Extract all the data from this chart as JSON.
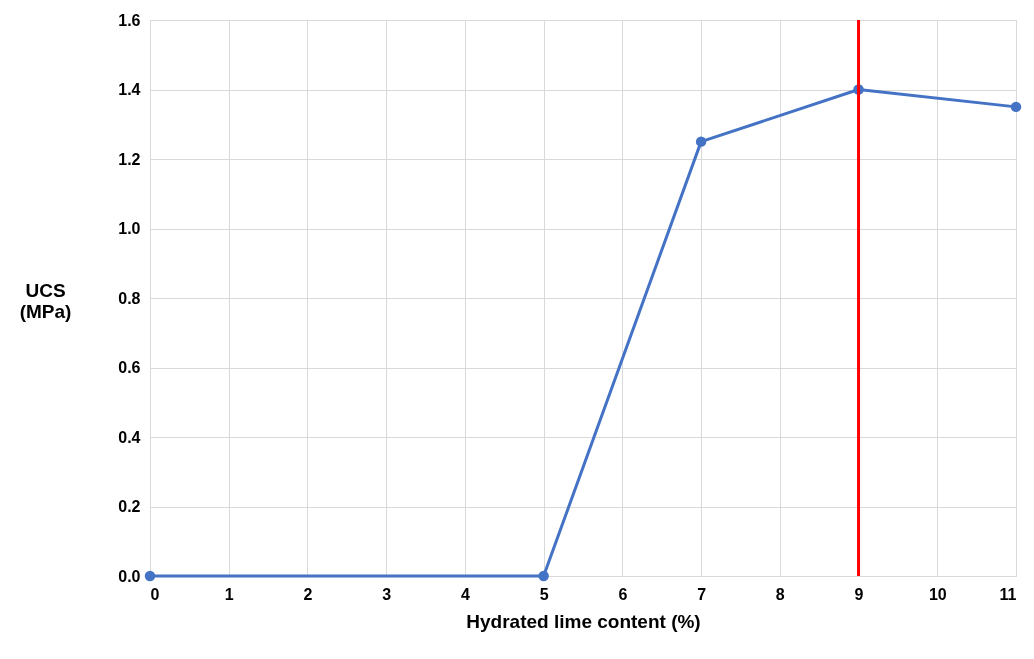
{
  "chart_data": {
    "type": "line",
    "xlabel": "Hydrated lime content (%)",
    "ylabel": "UCS (MPa)",
    "x": [
      0,
      5,
      7,
      9,
      11
    ],
    "series": [
      {
        "color": "#4472c4",
        "values": [
          0,
          0,
          1.25,
          1.4,
          1.35
        ]
      }
    ],
    "xlim": [
      0,
      11
    ],
    "xticks": [
      0,
      1,
      2,
      3,
      4,
      5,
      6,
      7,
      8,
      9,
      10,
      11
    ],
    "ylim": [
      0,
      1.6
    ],
    "yticks": [
      {
        "value": 0,
        "label": "0.0"
      },
      {
        "value": 0.2,
        "label": "0.2"
      },
      {
        "value": 0.4,
        "label": "0.4"
      },
      {
        "value": 0.6,
        "label": "0.6"
      },
      {
        "value": 0.8,
        "label": "0.8"
      },
      {
        "value": 1.0,
        "label": "1.0"
      },
      {
        "value": 1.2,
        "label": "1.2"
      },
      {
        "value": 1.4,
        "label": "1.4"
      },
      {
        "value": 1.6,
        "label": "1.6"
      }
    ],
    "ref_lines": [
      {
        "axis": "x",
        "value": 9,
        "color": "#ff0000"
      }
    ],
    "grid": true,
    "marker": "circle",
    "line_style": "solid"
  }
}
